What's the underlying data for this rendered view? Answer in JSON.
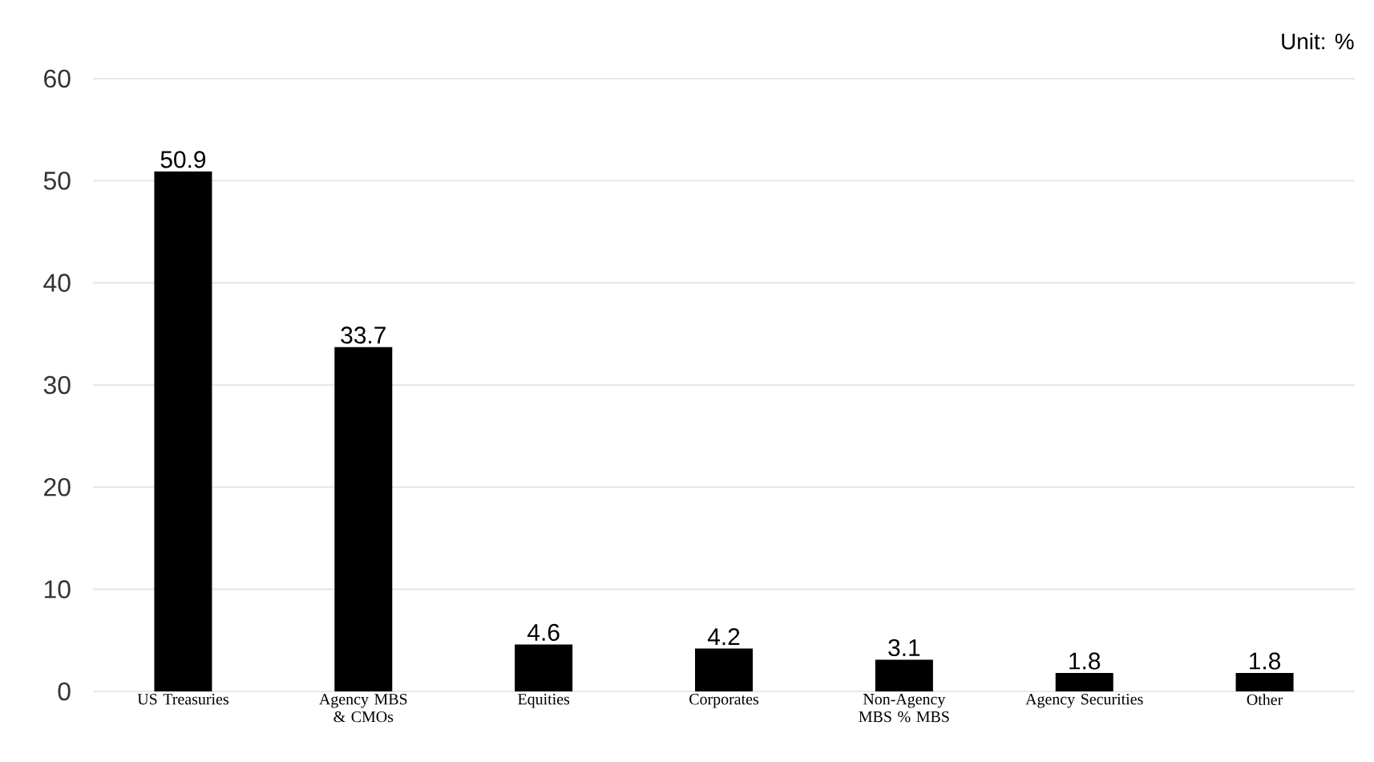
{
  "chart_data": {
    "type": "bar",
    "categories": [
      "US Treasuries",
      "Agency MBS & CMOs",
      "Equities",
      "Corporates",
      "Non-Agency MBS % MBS",
      "Agency Securities",
      "Other"
    ],
    "values": [
      50.9,
      33.7,
      4.6,
      4.2,
      3.1,
      1.8,
      1.8
    ],
    "color": "#000000",
    "ylim": [
      0,
      60
    ],
    "yticks": [
      0,
      10,
      20,
      30,
      40,
      50,
      60
    ],
    "grid": "y",
    "data_labels": true,
    "annotations": [
      "Unit: %"
    ]
  }
}
